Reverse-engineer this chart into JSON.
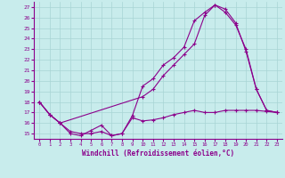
{
  "xlabel": "Windchill (Refroidissement éolien,°C)",
  "xlim": [
    -0.5,
    23.5
  ],
  "ylim": [
    14.5,
    27.5
  ],
  "xticks": [
    0,
    1,
    2,
    3,
    4,
    5,
    6,
    7,
    8,
    9,
    10,
    11,
    12,
    13,
    14,
    15,
    16,
    17,
    18,
    19,
    20,
    21,
    22,
    23
  ],
  "yticks": [
    15,
    16,
    17,
    18,
    19,
    20,
    21,
    22,
    23,
    24,
    25,
    26,
    27
  ],
  "bg_color": "#c8ecec",
  "line_color": "#8b008b",
  "grid_color": "#a8d4d4",
  "series1_x": [
    0,
    1,
    2,
    3,
    4,
    5,
    6,
    7,
    8,
    9,
    10,
    11,
    12,
    13,
    14,
    15,
    16,
    17,
    18,
    19,
    20,
    21,
    22,
    23
  ],
  "series1_y": [
    18.0,
    16.8,
    16.0,
    15.0,
    14.8,
    15.3,
    15.8,
    14.8,
    15.0,
    16.5,
    16.2,
    16.3,
    16.5,
    16.8,
    17.0,
    17.2,
    17.0,
    17.0,
    17.2,
    17.2,
    17.2,
    17.2,
    17.1,
    17.0
  ],
  "series2_x": [
    0,
    1,
    2,
    3,
    4,
    5,
    6,
    7,
    8,
    9,
    10,
    11,
    12,
    13,
    14,
    15,
    16,
    17,
    18,
    19,
    20,
    21,
    22,
    23
  ],
  "series2_y": [
    18.0,
    16.8,
    16.0,
    15.2,
    15.0,
    15.0,
    15.2,
    14.8,
    15.0,
    16.7,
    19.5,
    20.2,
    21.5,
    22.2,
    23.2,
    25.7,
    26.5,
    27.2,
    26.5,
    25.3,
    23.0,
    19.2,
    17.2,
    17.0
  ],
  "series3_x": [
    0,
    1,
    2,
    10,
    11,
    12,
    13,
    14,
    15,
    16,
    17,
    18,
    19,
    20,
    21,
    22,
    23
  ],
  "series3_y": [
    18.0,
    16.8,
    16.0,
    18.5,
    19.2,
    20.5,
    21.5,
    22.5,
    23.5,
    26.2,
    27.2,
    26.8,
    25.5,
    22.8,
    19.2,
    17.2,
    17.0
  ]
}
